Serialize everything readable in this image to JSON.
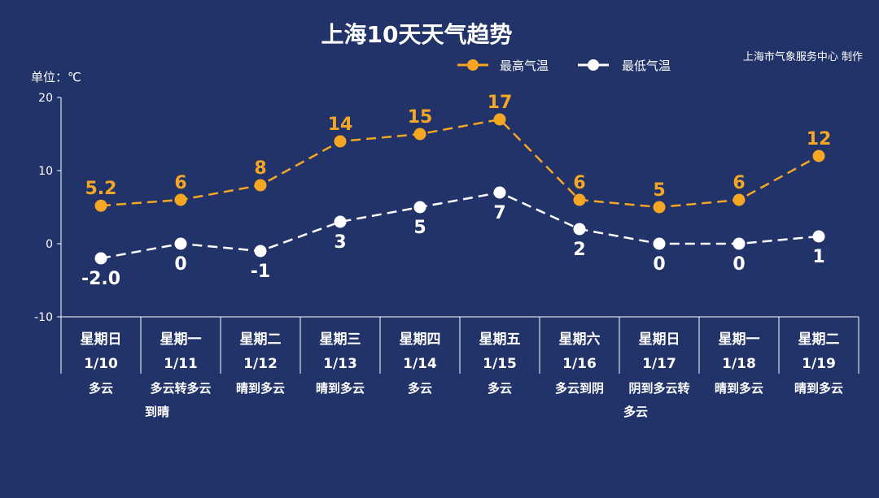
{
  "chart_data": {
    "type": "line",
    "title": "上海10天天气趋势",
    "credit": "上海市气象服务中心 制作",
    "ylabel": "单位：℃",
    "ylim": [
      -10,
      20
    ],
    "yticks": [
      "20",
      "10",
      "0",
      "-10"
    ],
    "legend_position": "top",
    "categories": [
      {
        "day": "星期日",
        "date": "1/10",
        "weather": [
          "多云"
        ]
      },
      {
        "day": "星期一",
        "date": "1/11",
        "weather": [
          "多云转多云",
          "到晴"
        ]
      },
      {
        "day": "星期二",
        "date": "1/12",
        "weather": [
          "晴到多云"
        ]
      },
      {
        "day": "星期三",
        "date": "1/13",
        "weather": [
          "晴到多云"
        ]
      },
      {
        "day": "星期四",
        "date": "1/14",
        "weather": [
          "多云"
        ]
      },
      {
        "day": "星期五",
        "date": "1/15",
        "weather": [
          "多云"
        ]
      },
      {
        "day": "星期六",
        "date": "1/16",
        "weather": [
          "多云到阴"
        ]
      },
      {
        "day": "星期日",
        "date": "1/17",
        "weather": [
          "阴到多云转",
          "多云"
        ]
      },
      {
        "day": "星期一",
        "date": "1/18",
        "weather": [
          "晴到多云"
        ]
      },
      {
        "day": "星期二",
        "date": "1/19",
        "weather": [
          "晴到多云"
        ]
      }
    ],
    "series": [
      {
        "name": "最高气温",
        "color": "#f5a623",
        "values": [
          5.2,
          6,
          8,
          14,
          15,
          17,
          6,
          5,
          6,
          12
        ],
        "labels": [
          "5.2",
          "6",
          "8",
          "14",
          "15",
          "17",
          "6",
          "5",
          "6",
          "12"
        ]
      },
      {
        "name": "最低气温",
        "color": "#ffffff",
        "values": [
          -2.0,
          0,
          -1,
          3,
          5,
          7,
          2,
          0,
          0,
          1
        ],
        "labels": [
          "-2.0",
          "0",
          "-1",
          "3",
          "5",
          "7",
          "2",
          "0",
          "0",
          "1"
        ]
      }
    ]
  }
}
